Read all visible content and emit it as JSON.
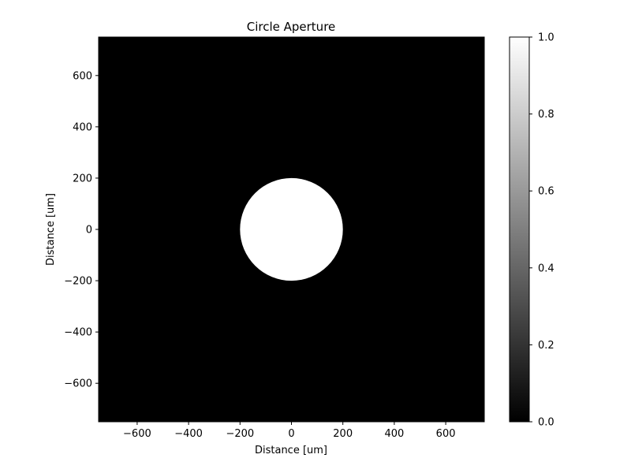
{
  "chart_data": {
    "type": "heatmap",
    "title": "Circle Aperture",
    "xlabel": "Distance [um]",
    "ylabel": "Distance [um]",
    "xlim": [
      -750,
      750
    ],
    "ylim": [
      -750,
      750
    ],
    "x_ticks": [
      -600,
      -400,
      -200,
      0,
      200,
      400,
      600
    ],
    "y_ticks": [
      -600,
      -400,
      -200,
      0,
      200,
      400,
      600
    ],
    "colormap": "gray",
    "background_value": 0.0,
    "aperture": {
      "shape": "circle",
      "center": [
        0,
        0
      ],
      "radius": 200,
      "value": 1.0
    },
    "colorbar": {
      "range": [
        0.0,
        1.0
      ],
      "ticks": [
        "0.0",
        "0.2",
        "0.4",
        "0.6",
        "0.8",
        "1.0"
      ],
      "low_color": "#000000",
      "high_color": "#ffffff"
    },
    "grid": false
  }
}
